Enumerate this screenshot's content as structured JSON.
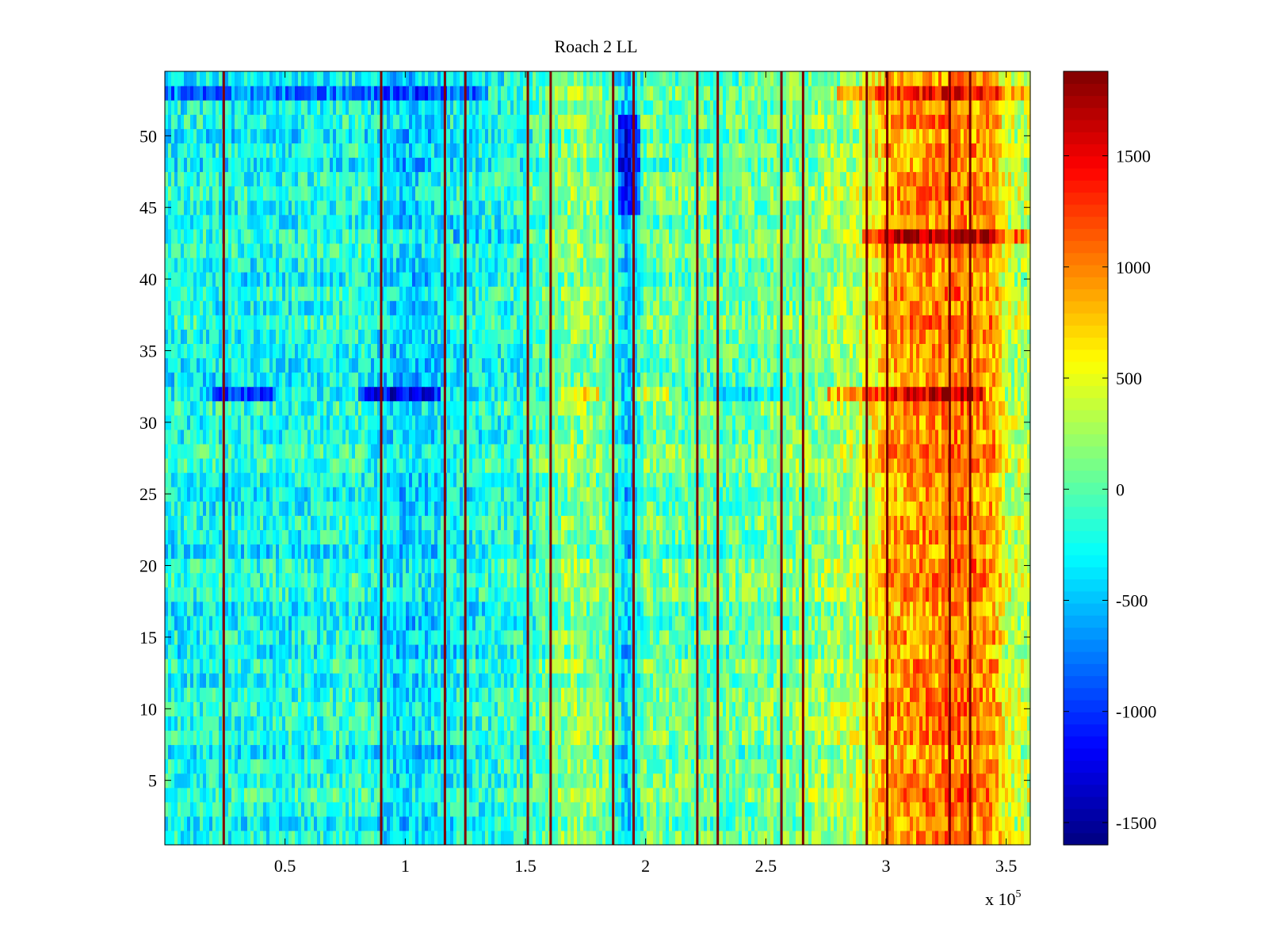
{
  "chart_data": {
    "type": "heatmap",
    "title": "Roach 2 LL",
    "xlabel": "",
    "ylabel": "",
    "x_multiplier_label": "x 10",
    "x_multiplier_exponent": "5",
    "xlim": [
      0,
      360000
    ],
    "ylim": [
      0.5,
      54.5
    ],
    "x_ticks": [
      {
        "value": 50000,
        "label": "0.5"
      },
      {
        "value": 100000,
        "label": "1"
      },
      {
        "value": 150000,
        "label": "1.5"
      },
      {
        "value": 200000,
        "label": "2"
      },
      {
        "value": 250000,
        "label": "2.5"
      },
      {
        "value": 300000,
        "label": "3"
      },
      {
        "value": 350000,
        "label": "3.5"
      }
    ],
    "y_ticks": [
      {
        "value": 5,
        "label": "5"
      },
      {
        "value": 10,
        "label": "10"
      },
      {
        "value": 15,
        "label": "15"
      },
      {
        "value": 20,
        "label": "20"
      },
      {
        "value": 25,
        "label": "25"
      },
      {
        "value": 30,
        "label": "30"
      },
      {
        "value": 35,
        "label": "35"
      },
      {
        "value": 40,
        "label": "40"
      },
      {
        "value": 45,
        "label": "45"
      },
      {
        "value": 50,
        "label": "50"
      }
    ],
    "n_rows": 54,
    "colormap": "jet",
    "colorbar": {
      "clim": [
        -1600,
        1880
      ],
      "ticks": [
        {
          "value": -1500,
          "label": "-1500"
        },
        {
          "value": -1000,
          "label": "-1000"
        },
        {
          "value": -500,
          "label": "-500"
        },
        {
          "value": 0,
          "label": "0"
        },
        {
          "value": 500,
          "label": "500"
        },
        {
          "value": 1000,
          "label": "1000"
        },
        {
          "value": 1500,
          "label": "1500"
        }
      ]
    },
    "column_trend": [
      {
        "x": 0,
        "value": -250
      },
      {
        "x": 50000,
        "value": -260
      },
      {
        "x": 80000,
        "value": -200
      },
      {
        "x": 100000,
        "value": -450
      },
      {
        "x": 120000,
        "value": -300
      },
      {
        "x": 150000,
        "value": -150
      },
      {
        "x": 170000,
        "value": 200
      },
      {
        "x": 185000,
        "value": 50
      },
      {
        "x": 192000,
        "value": -500
      },
      {
        "x": 200000,
        "value": 50
      },
      {
        "x": 230000,
        "value": 0
      },
      {
        "x": 250000,
        "value": 50
      },
      {
        "x": 270000,
        "value": 150
      },
      {
        "x": 290000,
        "value": 350
      },
      {
        "x": 300000,
        "value": 850
      },
      {
        "x": 330000,
        "value": 1050
      },
      {
        "x": 345000,
        "value": 900
      },
      {
        "x": 350000,
        "value": 400
      },
      {
        "x": 360000,
        "value": 300
      }
    ],
    "horizontal_features": [
      {
        "y": 53,
        "x_start": 0,
        "x_end": 135000,
        "delta": -550
      },
      {
        "y": 53,
        "x_start": 280000,
        "x_end": 360000,
        "delta": 400
      },
      {
        "y": 32,
        "x_start": 20000,
        "x_end": 45000,
        "delta": -550
      },
      {
        "y": 32,
        "x_start": 80000,
        "x_end": 115000,
        "delta": -750
      },
      {
        "y": 32,
        "x_start": 165000,
        "x_end": 180000,
        "delta": 550
      },
      {
        "y": 32,
        "x_start": 195000,
        "x_end": 210000,
        "delta": 450
      },
      {
        "y": 32,
        "x_start": 225000,
        "x_end": 260000,
        "delta": -250
      },
      {
        "y": 32,
        "x_start": 275000,
        "x_end": 340000,
        "delta": 700
      },
      {
        "y": 43,
        "x_start": 290000,
        "x_end": 360000,
        "delta": 600
      },
      {
        "y": 43,
        "x_start": 120000,
        "x_end": 150000,
        "delta": -250
      }
    ],
    "vertical_lines_x": [
      24500,
      90000,
      116500,
      125000,
      151000,
      160500,
      186500,
      195000,
      221500,
      230000,
      256500,
      265500,
      292000,
      300500,
      326500,
      335000
    ],
    "vertical_line_value": 1880
  }
}
